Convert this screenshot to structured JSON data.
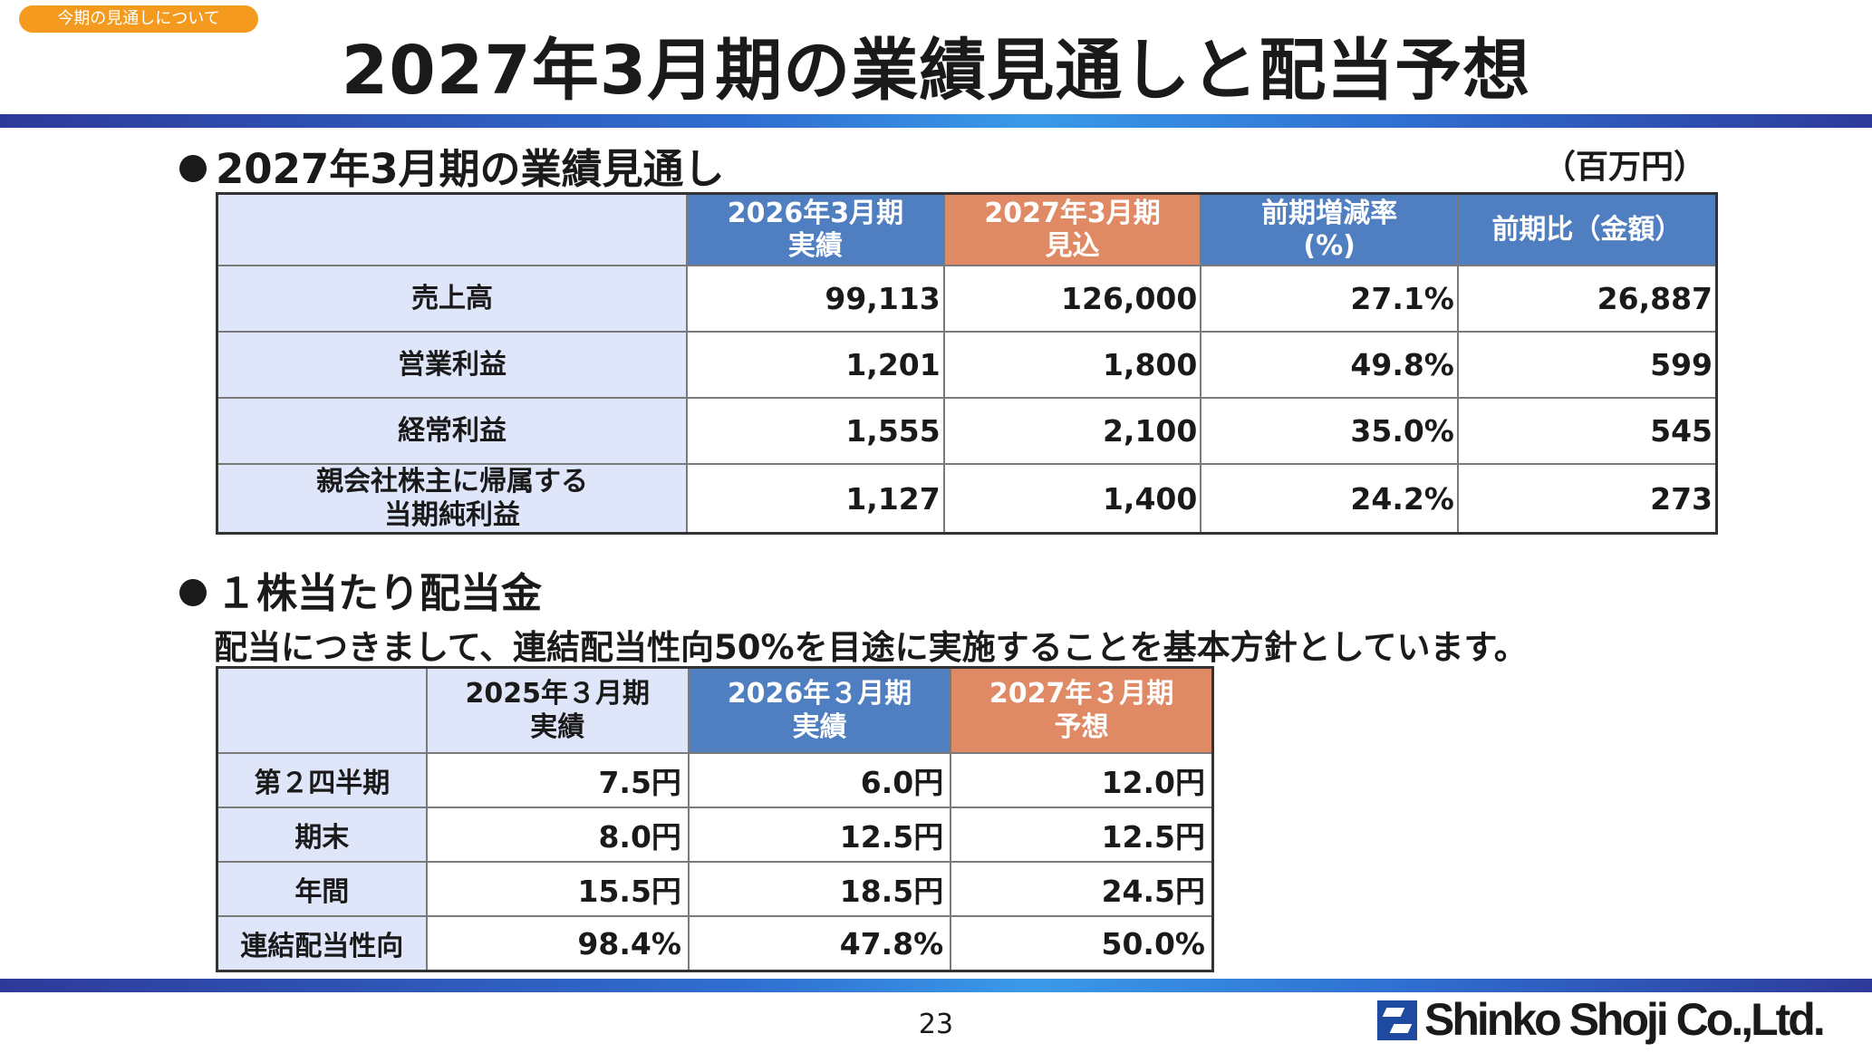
{
  "header": {
    "tag": "今期の見通しについて",
    "title": "2027年3月期の業績見通しと配当予想"
  },
  "section1": {
    "heading": "2027年3月期の業績見通し",
    "unit": "（百万円）",
    "columns": [
      {
        "line1": "2026年3月期",
        "line2": "実績"
      },
      {
        "line1": "2027年3月期",
        "line2": "見込"
      },
      {
        "line1": "前期増減率",
        "line2": "(%)"
      },
      {
        "line1": "前期比（金額）",
        "line2": ""
      }
    ],
    "rows": [
      {
        "label1": "売上高",
        "label2": "",
        "values": [
          "99,113",
          "126,000",
          "27.1%",
          "26,887"
        ]
      },
      {
        "label1": "営業利益",
        "label2": "",
        "values": [
          "1,201",
          "1,800",
          "49.8%",
          "599"
        ]
      },
      {
        "label1": "経常利益",
        "label2": "",
        "values": [
          "1,555",
          "2,100",
          "35.0%",
          "545"
        ]
      },
      {
        "label1": "親会社株主に帰属する",
        "label2": "当期純利益",
        "values": [
          "1,127",
          "1,400",
          "24.2%",
          "273"
        ]
      }
    ]
  },
  "section2": {
    "heading": "１株当たり配当金",
    "policy": "配当につきまして、連結配当性向50%を目途に実施することを基本方針としています。",
    "columns": [
      {
        "line1": "2025年３月期",
        "line2": "実績"
      },
      {
        "line1": "2026年３月期",
        "line2": "実績"
      },
      {
        "line1": "2027年３月期",
        "line2": "予想"
      }
    ],
    "rows": [
      {
        "label": "第２四半期",
        "values": [
          "7.5円",
          "6.0円",
          "12.0円"
        ]
      },
      {
        "label": "期末",
        "values": [
          "8.0円",
          "12.5円",
          "12.5円"
        ]
      },
      {
        "label": "年間",
        "values": [
          "15.5円",
          "18.5円",
          "24.5円"
        ]
      },
      {
        "label": "連結配当性向",
        "values": [
          "98.4%",
          "47.8%",
          "50.0%"
        ]
      }
    ]
  },
  "footer": {
    "page_number": "23",
    "logo_text": "Shinko Shoji Co.,Ltd."
  },
  "colors": {
    "tag": "#f39a1f",
    "header_blue": "#4f7fc1",
    "header_orange": "#e08a65",
    "label_fill": "#e0e6fa"
  }
}
